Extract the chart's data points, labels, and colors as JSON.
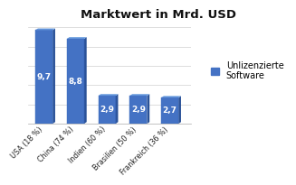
{
  "title": "Marktwert in Mrd. USD",
  "categories": [
    "USA (18 %)",
    "China (74 %)",
    "Indien (60 %)",
    "Brasilien (50 %)",
    "Frankreich (36 %)"
  ],
  "values": [
    9.7,
    8.8,
    2.9,
    2.9,
    2.7
  ],
  "bar_color_face": "#4472c4",
  "bar_color_top": "#6fa0e0",
  "bar_color_side": "#2a5298",
  "legend_label": "Unlizenzierte\nSoftware",
  "legend_color": "#4472c4",
  "ylim": [
    0,
    11
  ],
  "title_fontsize": 9.5,
  "value_fontsize": 6.5,
  "tick_fontsize": 5.8,
  "legend_fontsize": 7.0,
  "background_color": "#ffffff",
  "plot_bg_color": "#ffffff",
  "grid_color": "#d0d0d0",
  "grid_yticks": [
    2,
    4,
    6,
    8,
    10
  ]
}
